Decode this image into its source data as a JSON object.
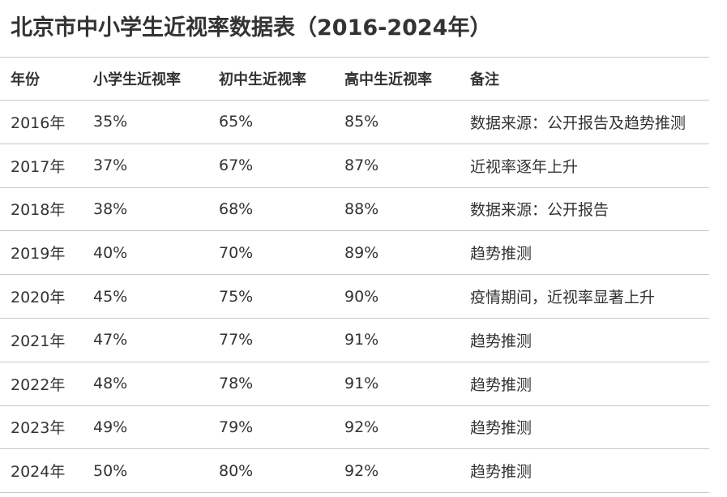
{
  "title": "北京市中小学生近视率数据表（2016-2024年）",
  "table": {
    "headers": {
      "year": "年份",
      "primary": "小学生近视率",
      "junior": "初中生近视率",
      "senior": "高中生近视率",
      "note": "备注"
    },
    "rows": [
      {
        "year": "2016年",
        "primary": "35%",
        "junior": "65%",
        "senior": "85%",
        "note": "数据来源：公开报告及趋势推测"
      },
      {
        "year": "2017年",
        "primary": "37%",
        "junior": "67%",
        "senior": "87%",
        "note": "近视率逐年上升"
      },
      {
        "year": "2018年",
        "primary": "38%",
        "junior": "68%",
        "senior": "88%",
        "note": "数据来源：公开报告"
      },
      {
        "year": "2019年",
        "primary": "40%",
        "junior": "70%",
        "senior": "89%",
        "note": "趋势推测"
      },
      {
        "year": "2020年",
        "primary": "45%",
        "junior": "75%",
        "senior": "90%",
        "note": "疫情期间，近视率显著上升"
      },
      {
        "year": "2021年",
        "primary": "47%",
        "junior": "77%",
        "senior": "91%",
        "note": "趋势推测"
      },
      {
        "year": "2022年",
        "primary": "48%",
        "junior": "78%",
        "senior": "91%",
        "note": "趋势推测"
      },
      {
        "year": "2023年",
        "primary": "49%",
        "junior": "79%",
        "senior": "92%",
        "note": "趋势推测"
      },
      {
        "year": "2024年",
        "primary": "50%",
        "junior": "80%",
        "senior": "92%",
        "note": "趋势推测"
      }
    ]
  }
}
